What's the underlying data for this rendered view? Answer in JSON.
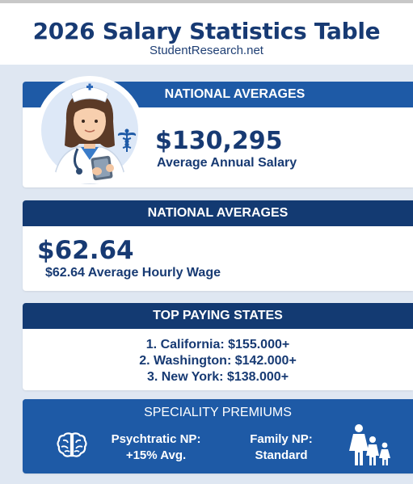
{
  "header": {
    "title": "2026 Salary Statistics Table",
    "subtitle": "StudentResearch.net"
  },
  "card_salary": {
    "heading": "NATIONAL AVERAGES",
    "amount": "$130,295",
    "label": "Average Annual Salary",
    "icons": [
      "nurse-avatar-icon",
      "caduceus-icon"
    ]
  },
  "card_hourly": {
    "heading": "NATIONAL AVERAGES",
    "amount": "$62.64",
    "label": "$62.64 Average Hourly Wage"
  },
  "card_states": {
    "heading": "TOP PAYING STATES",
    "rows": [
      "1. California: $155.000+",
      "2. Washington: $142.000+",
      "3. New York: $138.000+"
    ]
  },
  "card_premiums": {
    "heading": "SPECIALITY PREMIUMS",
    "items": [
      {
        "line1": "Psychtratic NP:",
        "line2": "+15% Avg.",
        "icon": "brain-icon"
      },
      {
        "line1": "Family NP:",
        "line2": "Standard",
        "icon": "family-icon"
      }
    ]
  },
  "colors": {
    "navy": "#173a73",
    "blue": "#1e5aa6",
    "dark_blue": "#133a72",
    "background": "#dfe7f2"
  }
}
